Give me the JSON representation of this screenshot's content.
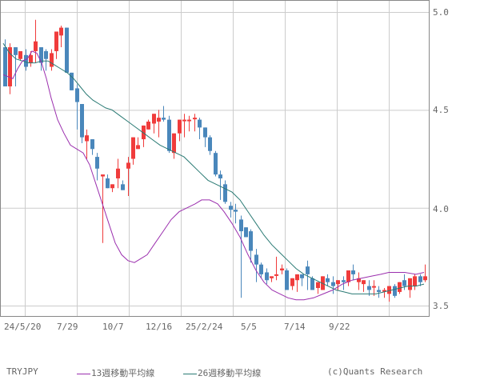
{
  "chart_data": {
    "type": "candlestick",
    "title": "TRYJPY",
    "symbol": "TRYJPY",
    "ylim": [
      3.45,
      5.06
    ],
    "yticks": [
      5.0,
      4.5,
      4.0,
      3.5
    ],
    "ytick_labels": [
      "5.0",
      "4.5",
      "4.0",
      "3.5"
    ],
    "xtick_labels": [
      "24/5/20",
      "7/29",
      "10/7",
      "12/16",
      "25/2/24",
      "5/5",
      "7/14",
      "9/22"
    ],
    "xtick_index": [
      4,
      14,
      24,
      34,
      44,
      54,
      64,
      74
    ],
    "grid": true,
    "colors": {
      "up": "#f03c3c",
      "down": "#4a87bb",
      "ma13": "#9b2fae",
      "ma26": "#2a7a74",
      "grid": "#cccccc",
      "frame": "#888888"
    },
    "candles": [
      [
        4.82,
        4.86,
        4.64,
        4.62
      ],
      [
        4.62,
        4.84,
        4.58,
        4.82
      ],
      [
        4.82,
        4.8,
        4.62,
        4.78
      ],
      [
        4.76,
        4.75,
        4.76,
        4.8
      ],
      [
        4.78,
        4.81,
        4.7,
        4.72
      ],
      [
        4.74,
        4.8,
        4.72,
        4.78
      ],
      [
        4.8,
        4.96,
        4.74,
        4.85
      ],
      [
        4.82,
        4.82,
        4.7,
        4.74
      ],
      [
        4.8,
        4.81,
        4.7,
        4.76
      ],
      [
        4.72,
        4.81,
        4.7,
        4.79
      ],
      [
        4.8,
        4.88,
        4.76,
        4.9
      ],
      [
        4.88,
        4.93,
        4.82,
        4.92
      ],
      [
        4.92,
        4.92,
        4.77,
        4.69
      ],
      [
        4.69,
        4.69,
        4.63,
        4.6
      ],
      [
        4.61,
        4.63,
        4.4,
        4.54
      ],
      [
        4.53,
        4.53,
        4.33,
        4.36
      ],
      [
        4.34,
        4.4,
        4.25,
        4.37
      ],
      [
        4.35,
        4.35,
        4.27,
        4.3
      ],
      [
        4.26,
        4.28,
        4.14,
        4.2
      ],
      [
        4.16,
        4.17,
        3.82,
        4.17
      ],
      [
        4.15,
        4.17,
        4.15,
        4.1
      ],
      [
        4.1,
        4.11,
        4.08,
        4.12
      ],
      [
        4.15,
        4.25,
        4.1,
        4.2
      ],
      [
        4.12,
        4.14,
        4.11,
        4.09
      ],
      [
        4.2,
        4.26,
        4.06,
        4.23
      ],
      [
        4.25,
        4.35,
        4.22,
        4.36
      ],
      [
        4.3,
        4.36,
        4.3,
        4.32
      ],
      [
        4.35,
        4.42,
        4.31,
        4.42
      ],
      [
        4.4,
        4.45,
        4.4,
        4.44
      ],
      [
        4.43,
        4.47,
        4.38,
        4.48
      ],
      [
        4.44,
        4.5,
        4.36,
        4.46
      ],
      [
        4.46,
        4.52,
        4.44,
        4.45
      ],
      [
        4.45,
        4.47,
        4.28,
        4.29
      ],
      [
        4.28,
        4.38,
        4.25,
        4.38
      ],
      [
        4.38,
        4.4,
        4.34,
        4.45
      ],
      [
        4.45,
        4.48,
        4.36,
        4.45
      ],
      [
        4.45,
        4.47,
        4.39,
        4.45
      ],
      [
        4.46,
        4.48,
        4.39,
        4.46
      ],
      [
        4.45,
        4.46,
        4.35,
        4.41
      ],
      [
        4.41,
        4.41,
        4.31,
        4.36
      ],
      [
        4.36,
        4.37,
        4.27,
        4.29
      ],
      [
        4.28,
        4.29,
        4.16,
        4.17
      ],
      [
        4.17,
        4.19,
        4.04,
        4.15
      ],
      [
        4.12,
        4.14,
        4.02,
        4.03
      ],
      [
        4.01,
        4.03,
        3.95,
        3.99
      ],
      [
        3.99,
        4.02,
        3.92,
        3.98
      ],
      [
        3.94,
        3.96,
        3.54,
        3.88
      ],
      [
        3.9,
        3.86,
        3.85,
        3.85
      ],
      [
        3.88,
        3.89,
        3.72,
        3.78
      ],
      [
        3.76,
        3.79,
        3.62,
        3.71
      ],
      [
        3.71,
        3.72,
        3.64,
        3.66
      ],
      [
        3.67,
        3.69,
        3.61,
        3.63
      ],
      [
        3.64,
        3.65,
        3.62,
        3.65
      ],
      [
        3.66,
        3.75,
        3.63,
        3.66
      ],
      [
        3.68,
        3.71,
        3.66,
        3.69
      ],
      [
        3.68,
        3.69,
        3.58,
        3.58
      ],
      [
        3.6,
        3.64,
        3.58,
        3.64
      ],
      [
        3.63,
        3.64,
        3.57,
        3.66
      ],
      [
        3.66,
        3.66,
        3.6,
        3.64
      ],
      [
        3.7,
        3.73,
        3.58,
        3.66
      ],
      [
        3.64,
        3.65,
        3.58,
        3.58
      ],
      [
        3.59,
        3.62,
        3.56,
        3.62
      ],
      [
        3.58,
        3.58,
        3.62,
        3.65
      ],
      [
        3.64,
        3.66,
        3.6,
        3.62
      ],
      [
        3.62,
        3.65,
        3.56,
        3.6
      ],
      [
        3.61,
        3.63,
        3.58,
        3.63
      ],
      [
        3.63,
        3.65,
        3.58,
        3.62
      ],
      [
        3.62,
        3.66,
        3.6,
        3.68
      ],
      [
        3.68,
        3.71,
        3.63,
        3.66
      ],
      [
        3.62,
        3.67,
        3.58,
        3.64
      ],
      [
        3.61,
        3.62,
        3.57,
        3.63
      ],
      [
        3.6,
        3.63,
        3.55,
        3.58
      ],
      [
        3.6,
        3.63,
        3.55,
        3.6
      ],
      [
        3.58,
        3.6,
        3.54,
        3.57
      ],
      [
        3.58,
        3.59,
        3.54,
        3.58
      ],
      [
        3.56,
        3.58,
        3.52,
        3.6
      ],
      [
        3.6,
        3.61,
        3.54,
        3.55
      ],
      [
        3.57,
        3.62,
        3.56,
        3.62
      ],
      [
        3.63,
        3.66,
        3.58,
        3.6
      ],
      [
        3.58,
        3.6,
        3.54,
        3.64
      ],
      [
        3.6,
        3.66,
        3.58,
        3.65
      ],
      [
        3.65,
        3.66,
        3.6,
        3.62
      ],
      [
        3.63,
        3.71,
        3.62,
        3.65
      ]
    ],
    "ma13": [
      [
        4,
        4.68
      ],
      [
        10,
        4.67
      ],
      [
        16,
        4.66
      ],
      [
        22,
        4.71
      ],
      [
        28,
        4.75
      ],
      [
        34,
        4.76
      ],
      [
        40,
        4.8
      ],
      [
        46,
        4.79
      ],
      [
        52,
        4.74
      ],
      [
        58,
        4.66
      ],
      [
        64,
        4.56
      ],
      [
        72,
        4.45
      ],
      [
        80,
        4.38
      ],
      [
        88,
        4.32
      ],
      [
        96,
        4.3
      ],
      [
        104,
        4.28
      ],
      [
        112,
        4.22
      ],
      [
        120,
        4.12
      ],
      [
        128,
        4.02
      ],
      [
        136,
        3.92
      ],
      [
        144,
        3.82
      ],
      [
        152,
        3.76
      ],
      [
        160,
        3.73
      ],
      [
        168,
        3.72
      ],
      [
        176,
        3.74
      ],
      [
        184,
        3.76
      ],
      [
        194,
        3.82
      ],
      [
        204,
        3.88
      ],
      [
        214,
        3.94
      ],
      [
        224,
        3.98
      ],
      [
        234,
        4.0
      ],
      [
        244,
        4.02
      ],
      [
        252,
        4.04
      ],
      [
        262,
        4.04
      ],
      [
        272,
        4.02
      ],
      [
        280,
        3.98
      ],
      [
        290,
        3.92
      ],
      [
        300,
        3.85
      ],
      [
        310,
        3.76
      ],
      [
        320,
        3.68
      ],
      [
        330,
        3.62
      ],
      [
        340,
        3.58
      ],
      [
        350,
        3.56
      ],
      [
        360,
        3.54
      ],
      [
        370,
        3.53
      ],
      [
        380,
        3.53
      ],
      [
        392,
        3.54
      ],
      [
        404,
        3.56
      ],
      [
        416,
        3.58
      ],
      [
        428,
        3.61
      ],
      [
        440,
        3.63
      ],
      [
        452,
        3.64
      ],
      [
        464,
        3.65
      ],
      [
        476,
        3.66
      ],
      [
        486,
        3.67
      ],
      [
        496,
        3.67
      ],
      [
        506,
        3.67
      ],
      [
        520,
        3.66
      ],
      [
        530,
        3.67
      ]
    ],
    "ma26": [
      [
        4,
        4.84
      ],
      [
        12,
        4.79
      ],
      [
        20,
        4.76
      ],
      [
        28,
        4.75
      ],
      [
        36,
        4.74
      ],
      [
        44,
        4.74
      ],
      [
        52,
        4.75
      ],
      [
        60,
        4.75
      ],
      [
        68,
        4.73
      ],
      [
        76,
        4.71
      ],
      [
        84,
        4.69
      ],
      [
        92,
        4.66
      ],
      [
        100,
        4.62
      ],
      [
        108,
        4.58
      ],
      [
        116,
        4.55
      ],
      [
        124,
        4.53
      ],
      [
        132,
        4.51
      ],
      [
        140,
        4.5
      ],
      [
        150,
        4.47
      ],
      [
        160,
        4.44
      ],
      [
        170,
        4.41
      ],
      [
        180,
        4.38
      ],
      [
        190,
        4.35
      ],
      [
        200,
        4.32
      ],
      [
        210,
        4.3
      ],
      [
        220,
        4.28
      ],
      [
        230,
        4.26
      ],
      [
        240,
        4.22
      ],
      [
        250,
        4.18
      ],
      [
        260,
        4.14
      ],
      [
        270,
        4.12
      ],
      [
        280,
        4.1
      ],
      [
        290,
        4.08
      ],
      [
        300,
        4.04
      ],
      [
        310,
        3.98
      ],
      [
        320,
        3.92
      ],
      [
        330,
        3.86
      ],
      [
        340,
        3.81
      ],
      [
        350,
        3.77
      ],
      [
        360,
        3.73
      ],
      [
        370,
        3.69
      ],
      [
        380,
        3.66
      ],
      [
        390,
        3.64
      ],
      [
        400,
        3.62
      ],
      [
        410,
        3.6
      ],
      [
        420,
        3.58
      ],
      [
        430,
        3.57
      ],
      [
        440,
        3.56
      ],
      [
        450,
        3.56
      ],
      [
        460,
        3.56
      ],
      [
        470,
        3.56
      ],
      [
        480,
        3.57
      ],
      [
        490,
        3.58
      ],
      [
        500,
        3.59
      ],
      [
        510,
        3.6
      ],
      [
        520,
        3.6
      ],
      [
        530,
        3.61
      ]
    ],
    "legend": [
      {
        "label": "13週移動平均線",
        "color": "#9b2fae"
      },
      {
        "label": "26週移動平均線",
        "color": "#2a7a74"
      }
    ]
  },
  "footer": {
    "symbol": "TRYJPY",
    "ma13_label": "13週移動平均線",
    "ma26_label": "26週移動平均線",
    "copyright": "(c)Quants Research"
  },
  "yaxis": {
    "t50": "5.0",
    "t45": "4.5",
    "t40": "4.0",
    "t35": "3.5"
  },
  "xaxis": {
    "l0": "24/5/20",
    "l1": "7/29",
    "l2": "10/7",
    "l3": "12/16",
    "l4": "25/2/24",
    "l5": "5/5",
    "l6": "7/14",
    "l7": "9/22"
  }
}
